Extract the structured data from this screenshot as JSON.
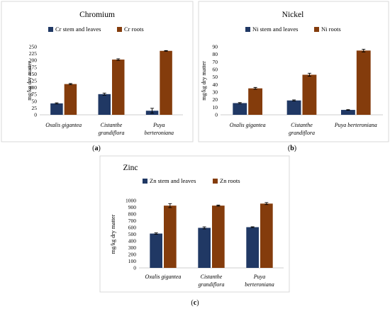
{
  "colors": {
    "stem": "#203864",
    "roots": "#843c0c"
  },
  "chart_data": [
    {
      "type": "bar",
      "title": "Chromium",
      "caption": "a",
      "ylabel": "mg/kg dry matter",
      "ylim": [
        0,
        250
      ],
      "yticks": [
        0,
        25,
        50,
        75,
        100,
        125,
        150,
        175,
        200,
        225,
        250
      ],
      "categories": [
        [
          "Oxalis gigantea"
        ],
        [
          "Cistanthe",
          "grandiflora"
        ],
        [
          "Puya",
          "berteroniana"
        ]
      ],
      "series": [
        {
          "name": "Cr stem and leaves",
          "values": [
            42,
            76,
            15
          ],
          "errors": [
            2,
            4,
            9
          ]
        },
        {
          "name": "Cr roots",
          "values": [
            113,
            203,
            235
          ],
          "errors": [
            2,
            3,
            1
          ]
        }
      ]
    },
    {
      "type": "bar",
      "title": "Nickel",
      "caption": "b",
      "ylabel": "mg/kg dry matter",
      "ylim": [
        0,
        90
      ],
      "yticks": [
        0,
        10,
        20,
        30,
        40,
        50,
        60,
        70,
        80,
        90
      ],
      "categories": [
        [
          "Oxalis gigantea"
        ],
        [
          "Cistanthe",
          "grandiflora"
        ],
        [
          "Puya berteroniana"
        ]
      ],
      "series": [
        {
          "name": "Ni stem and leaves",
          "values": [
            15.5,
            19,
            6.5
          ],
          "errors": [
            0.7,
            0.7,
            0.4
          ]
        },
        {
          "name": "Ni roots",
          "values": [
            35,
            53,
            85
          ],
          "errors": [
            1.2,
            2,
            1.8
          ]
        }
      ]
    },
    {
      "type": "bar",
      "title": "Zinc",
      "caption": "c",
      "ylabel": "mg/kg dry matter",
      "ylim": [
        0,
        1000
      ],
      "yticks": [
        0,
        100,
        200,
        300,
        400,
        500,
        600,
        700,
        800,
        900,
        1000
      ],
      "categories": [
        [
          "Oxalis gigantea"
        ],
        [
          "Cistanthe",
          "grandiflora"
        ],
        [
          "Puya",
          "berteroniana"
        ]
      ],
      "series": [
        {
          "name": "Zn stem and leaves",
          "values": [
            510,
            595,
            605
          ],
          "errors": [
            10,
            15,
            6
          ]
        },
        {
          "name": "Zn roots",
          "values": [
            925,
            925,
            955
          ],
          "errors": [
            30,
            8,
            15
          ]
        }
      ]
    }
  ]
}
